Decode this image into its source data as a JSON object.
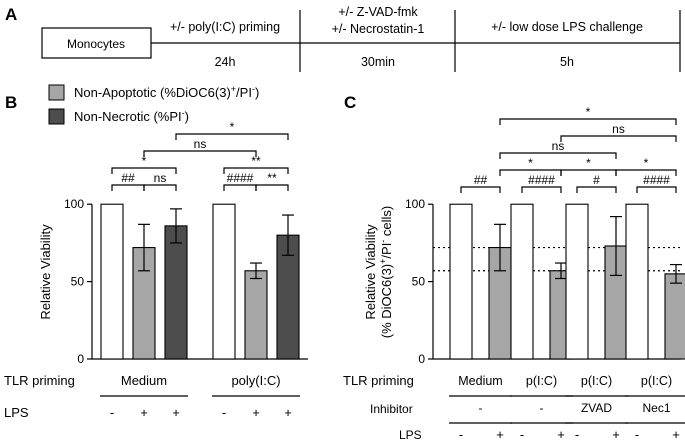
{
  "panels": {
    "A": {
      "letter": "A"
    },
    "B": {
      "letter": "B"
    },
    "C": {
      "letter": "C"
    }
  },
  "timeline": {
    "start_label": "Monocytes",
    "steps": [
      {
        "label_lines": [
          "+/- poly(I:C) priming"
        ],
        "duration": "24h"
      },
      {
        "label_lines": [
          "+/- Z-VAD-fmk",
          "+/- Necrostatin-1"
        ],
        "duration": "30min"
      },
      {
        "label_lines": [
          "+/- low dose LPS challenge"
        ],
        "duration": "5h"
      }
    ]
  },
  "legend": [
    {
      "label": "Non-Apoptotic (%DiOC6(3)",
      "sup_plus": "+",
      "mid": "/PI",
      "sup_minus": "-",
      "tail": ")",
      "color": "#a6a6a6"
    },
    {
      "label": "Non-Necrotic (%PI",
      "sup_plus": "",
      "mid": "",
      "sup_minus": "-",
      "tail": ")",
      "color": "#4d4d4d"
    }
  ],
  "colors": {
    "control": "#ffffff",
    "apoptotic": "#a6a6a6",
    "necrotic": "#4d4d4d",
    "stroke": "#000000"
  },
  "chart_data": [
    {
      "id": "panel-B",
      "type": "bar",
      "ylabel": "Relative Viability",
      "ylim": [
        0,
        115
      ],
      "yticks": [
        0,
        50,
        100
      ],
      "row_labels": {
        "tlr": "TLR priming",
        "lps": "LPS"
      },
      "groups": [
        {
          "tlr_priming": "Medium",
          "bars": [
            {
              "series": "control",
              "lps": "-",
              "value": 100,
              "err": 0
            },
            {
              "series": "apoptotic",
              "lps": "+",
              "value": 72,
              "err": 15
            },
            {
              "series": "necrotic",
              "lps": "+",
              "value": 86,
              "err": 11
            }
          ]
        },
        {
          "tlr_priming": "poly(I:C)",
          "bars": [
            {
              "series": "control",
              "lps": "-",
              "value": 100,
              "err": 0
            },
            {
              "series": "apoptotic",
              "lps": "+",
              "value": 57,
              "err": 5
            },
            {
              "series": "necrotic",
              "lps": "+",
              "value": 80,
              "err": 13
            }
          ]
        }
      ],
      "significance": [
        {
          "label": "##",
          "from": [
            0,
            0
          ],
          "to": [
            0,
            1
          ],
          "level": 1
        },
        {
          "label": "ns",
          "from": [
            0,
            1
          ],
          "to": [
            0,
            2
          ],
          "level": 1
        },
        {
          "label": "*",
          "from": [
            0,
            0
          ],
          "to": [
            0,
            2
          ],
          "level": 2
        },
        {
          "label": "####",
          "from": [
            1,
            0
          ],
          "to": [
            1,
            1
          ],
          "level": 1
        },
        {
          "label": "**",
          "from": [
            1,
            1
          ],
          "to": [
            1,
            2
          ],
          "level": 1
        },
        {
          "label": "**",
          "from": [
            1,
            0
          ],
          "to": [
            1,
            2
          ],
          "level": 2
        },
        {
          "label": "ns",
          "from": [
            0,
            1
          ],
          "to": [
            1,
            1
          ],
          "level": 3
        },
        {
          "label": "*",
          "from": [
            0,
            2
          ],
          "to": [
            1,
            2
          ],
          "level": 4
        }
      ]
    },
    {
      "id": "panel-C",
      "type": "bar",
      "ylabel_line1": "Relative Viability",
      "ylabel_line2": "(% DiOC6(3)",
      "ylabel_sup1": "+",
      "ylabel_mid": "/PI",
      "ylabel_sup2": "-",
      "ylabel_tail": " cells)",
      "ylim": [
        0,
        115
      ],
      "yticks": [
        0,
        50,
        100
      ],
      "reference_lines": [
        72,
        57
      ],
      "row_labels": {
        "tlr": "TLR priming",
        "inhibitor": "Inhibitor",
        "lps": "LPS"
      },
      "groups": [
        {
          "tlr_priming": "Medium",
          "inhibitor": "-",
          "bars": [
            {
              "series": "control",
              "lps": "-",
              "value": 100,
              "err": 0
            },
            {
              "series": "apoptotic",
              "lps": "+",
              "value": 72,
              "err": 15
            }
          ]
        },
        {
          "tlr_priming": "p(I:C)",
          "inhibitor": "-",
          "bars": [
            {
              "series": "control",
              "lps": "-",
              "value": 100,
              "err": 0
            },
            {
              "series": "apoptotic",
              "lps": "+",
              "value": 57,
              "err": 5
            }
          ]
        },
        {
          "tlr_priming": "p(I:C)",
          "inhibitor": "ZVAD",
          "bars": [
            {
              "series": "control",
              "lps": "-",
              "value": 100,
              "err": 0
            },
            {
              "series": "apoptotic",
              "lps": "+",
              "value": 73,
              "err": 19
            }
          ]
        },
        {
          "tlr_priming": "p(I:C)",
          "inhibitor": "Nec1",
          "bars": [
            {
              "series": "control",
              "lps": "-",
              "value": 100,
              "err": 0
            },
            {
              "series": "apoptotic",
              "lps": "+",
              "value": 55,
              "err": 6
            }
          ]
        }
      ],
      "significance": [
        {
          "label": "##",
          "from": [
            0,
            0
          ],
          "to": [
            0,
            1
          ],
          "level": 1
        },
        {
          "label": "####",
          "from": [
            1,
            0
          ],
          "to": [
            1,
            1
          ],
          "level": 1
        },
        {
          "label": "#",
          "from": [
            2,
            0
          ],
          "to": [
            2,
            1
          ],
          "level": 1
        },
        {
          "label": "####",
          "from": [
            3,
            0
          ],
          "to": [
            3,
            1
          ],
          "level": 1
        },
        {
          "label": "*",
          "from": [
            0,
            1
          ],
          "to": [
            1,
            1
          ],
          "level": 2
        },
        {
          "label": "*",
          "from": [
            1,
            1
          ],
          "to": [
            2,
            1
          ],
          "level": 2
        },
        {
          "label": "*",
          "from": [
            2,
            1
          ],
          "to": [
            3,
            1
          ],
          "level": 2
        },
        {
          "label": "ns",
          "from": [
            0,
            1
          ],
          "to": [
            2,
            1
          ],
          "level": 3
        },
        {
          "label": "ns",
          "from": [
            1,
            1
          ],
          "to": [
            3,
            1
          ],
          "level": 4
        },
        {
          "label": "*",
          "from": [
            0,
            1
          ],
          "to": [
            3,
            1
          ],
          "level": 5
        }
      ]
    }
  ]
}
